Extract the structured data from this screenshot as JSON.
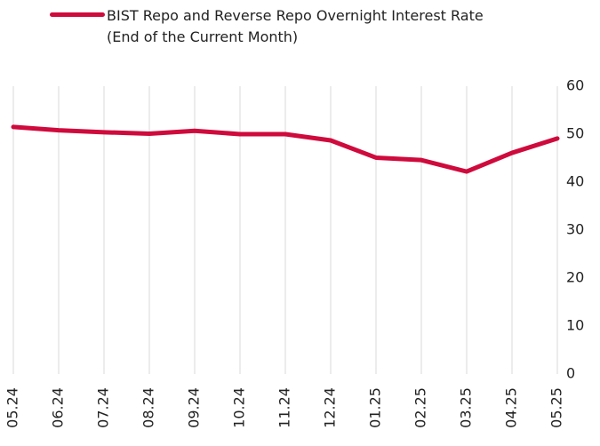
{
  "chart_data": {
    "type": "line",
    "categories": [
      "05.24",
      "06.24",
      "07.24",
      "08.24",
      "09.24",
      "10.24",
      "11.24",
      "12.24",
      "01.25",
      "02.25",
      "03.25",
      "04.25",
      "05.25"
    ],
    "series": [
      {
        "name": "BIST Repo and Reverse Repo Overnight Interest Rate (End of the Current Month)",
        "color": "#cf0a3c",
        "values": [
          51.5,
          50.8,
          50.4,
          50.1,
          50.7,
          50.0,
          50.0,
          48.7,
          45.1,
          44.6,
          42.2,
          46.1,
          49.1
        ]
      }
    ],
    "ylim": [
      0,
      60
    ],
    "yticks": [
      0,
      10,
      20,
      30,
      40,
      50,
      60
    ],
    "grid": true,
    "y_axis_side": "right"
  }
}
